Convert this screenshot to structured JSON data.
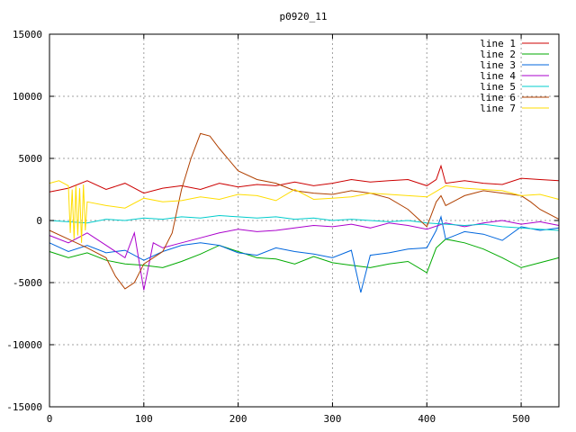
{
  "chart_data": {
    "type": "line",
    "title": "p0920_11",
    "xlabel": "",
    "ylabel": "",
    "xlim": [
      0,
      540
    ],
    "ylim": [
      -15000,
      15000
    ],
    "xticks": [
      0,
      100,
      200,
      300,
      400,
      500
    ],
    "yticks": [
      -15000,
      -10000,
      -5000,
      0,
      5000,
      10000,
      15000
    ],
    "grid": true,
    "legend": "top-right",
    "series": [
      {
        "name": "line 1",
        "color": "#cc0000",
        "x": [
          0,
          20,
          40,
          60,
          80,
          100,
          120,
          140,
          160,
          180,
          200,
          220,
          240,
          260,
          280,
          300,
          320,
          340,
          360,
          380,
          400,
          410,
          415,
          420,
          440,
          460,
          480,
          500,
          520,
          540
        ],
        "y": [
          2300,
          2600,
          3200,
          2500,
          3000,
          2200,
          2600,
          2800,
          2500,
          3000,
          2700,
          2900,
          2800,
          3100,
          2800,
          3000,
          3300,
          3100,
          3200,
          3300,
          2800,
          3300,
          4400,
          3000,
          3200,
          3000,
          2900,
          3400,
          3300,
          3200
        ]
      },
      {
        "name": "line 2",
        "color": "#00aa00",
        "x": [
          0,
          20,
          40,
          60,
          80,
          100,
          120,
          140,
          160,
          180,
          200,
          220,
          240,
          260,
          280,
          300,
          320,
          340,
          360,
          380,
          400,
          410,
          420,
          440,
          460,
          480,
          500,
          520,
          540
        ],
        "y": [
          -2500,
          -3000,
          -2600,
          -3200,
          -3500,
          -3600,
          -3800,
          -3300,
          -2700,
          -2000,
          -2500,
          -3000,
          -3100,
          -3500,
          -2900,
          -3400,
          -3600,
          -3800,
          -3500,
          -3300,
          -4200,
          -2200,
          -1500,
          -1800,
          -2300,
          -3000,
          -3800,
          -3400,
          -3000
        ]
      },
      {
        "name": "line 3",
        "color": "#0066dd",
        "x": [
          0,
          20,
          40,
          60,
          80,
          100,
          120,
          140,
          160,
          180,
          200,
          220,
          240,
          260,
          280,
          300,
          320,
          330,
          340,
          360,
          380,
          400,
          410,
          415,
          420,
          440,
          460,
          480,
          500,
          520,
          540
        ],
        "y": [
          -1800,
          -2500,
          -2000,
          -2600,
          -2400,
          -3200,
          -2500,
          -2000,
          -1800,
          -2000,
          -2600,
          -2800,
          -2200,
          -2500,
          -2700,
          -3000,
          -2400,
          -5800,
          -2800,
          -2600,
          -2300,
          -2200,
          -800,
          300,
          -1500,
          -900,
          -1100,
          -1600,
          -500,
          -800,
          -600
        ]
      },
      {
        "name": "line 4",
        "color": "#aa00cc",
        "x": [
          0,
          20,
          40,
          60,
          80,
          90,
          100,
          110,
          120,
          140,
          160,
          180,
          200,
          220,
          240,
          260,
          280,
          300,
          320,
          340,
          360,
          380,
          400,
          420,
          440,
          460,
          480,
          500,
          520,
          540
        ],
        "y": [
          -1200,
          -1800,
          -1000,
          -2000,
          -3000,
          -1000,
          -5600,
          -1800,
          -2200,
          -1800,
          -1400,
          -1000,
          -700,
          -900,
          -800,
          -600,
          -400,
          -500,
          -300,
          -600,
          -200,
          -400,
          -700,
          -200,
          -500,
          -200,
          0,
          -300,
          -100,
          -400
        ]
      },
      {
        "name": "line 5",
        "color": "#00cccc",
        "x": [
          0,
          20,
          40,
          60,
          80,
          100,
          120,
          140,
          160,
          180,
          200,
          220,
          240,
          260,
          280,
          300,
          320,
          340,
          360,
          380,
          400,
          420,
          440,
          460,
          480,
          500,
          520,
          540
        ],
        "y": [
          0,
          -100,
          -200,
          100,
          0,
          200,
          100,
          300,
          200,
          400,
          300,
          200,
          300,
          100,
          200,
          0,
          100,
          0,
          -100,
          0,
          -200,
          -300,
          -400,
          -300,
          -500,
          -600,
          -700,
          -800
        ]
      },
      {
        "name": "line 6",
        "color": "#b04000",
        "x": [
          0,
          20,
          40,
          60,
          70,
          80,
          90,
          100,
          120,
          130,
          140,
          150,
          160,
          170,
          180,
          200,
          220,
          240,
          260,
          280,
          300,
          320,
          340,
          360,
          380,
          400,
          410,
          415,
          420,
          440,
          460,
          480,
          500,
          510,
          520,
          540
        ],
        "y": [
          -800,
          -1500,
          -2200,
          -3000,
          -4500,
          -5500,
          -5000,
          -3500,
          -2500,
          -1000,
          2500,
          5000,
          7000,
          6800,
          5800,
          4000,
          3300,
          3000,
          2400,
          2200,
          2100,
          2400,
          2200,
          1800,
          900,
          -500,
          1500,
          2000,
          1200,
          2000,
          2400,
          2200,
          2000,
          1500,
          900,
          100
        ]
      },
      {
        "name": "line 7",
        "color": "#ffdd00",
        "x": [
          0,
          10,
          20,
          22,
          24,
          26,
          28,
          30,
          32,
          34,
          36,
          38,
          40,
          60,
          80,
          100,
          120,
          140,
          160,
          180,
          200,
          220,
          240,
          260,
          280,
          300,
          320,
          340,
          360,
          380,
          400,
          420,
          440,
          460,
          480,
          500,
          520,
          540
        ],
        "y": [
          3000,
          3200,
          2800,
          -1000,
          2500,
          -1500,
          2800,
          -1200,
          2600,
          -1800,
          2900,
          -800,
          1500,
          1200,
          1000,
          1800,
          1500,
          1600,
          1900,
          1700,
          2100,
          2000,
          1600,
          2500,
          1700,
          1800,
          1900,
          2200,
          2100,
          2000,
          1900,
          2800,
          2600,
          2500,
          2400,
          2000,
          2100,
          1700
        ]
      }
    ]
  }
}
